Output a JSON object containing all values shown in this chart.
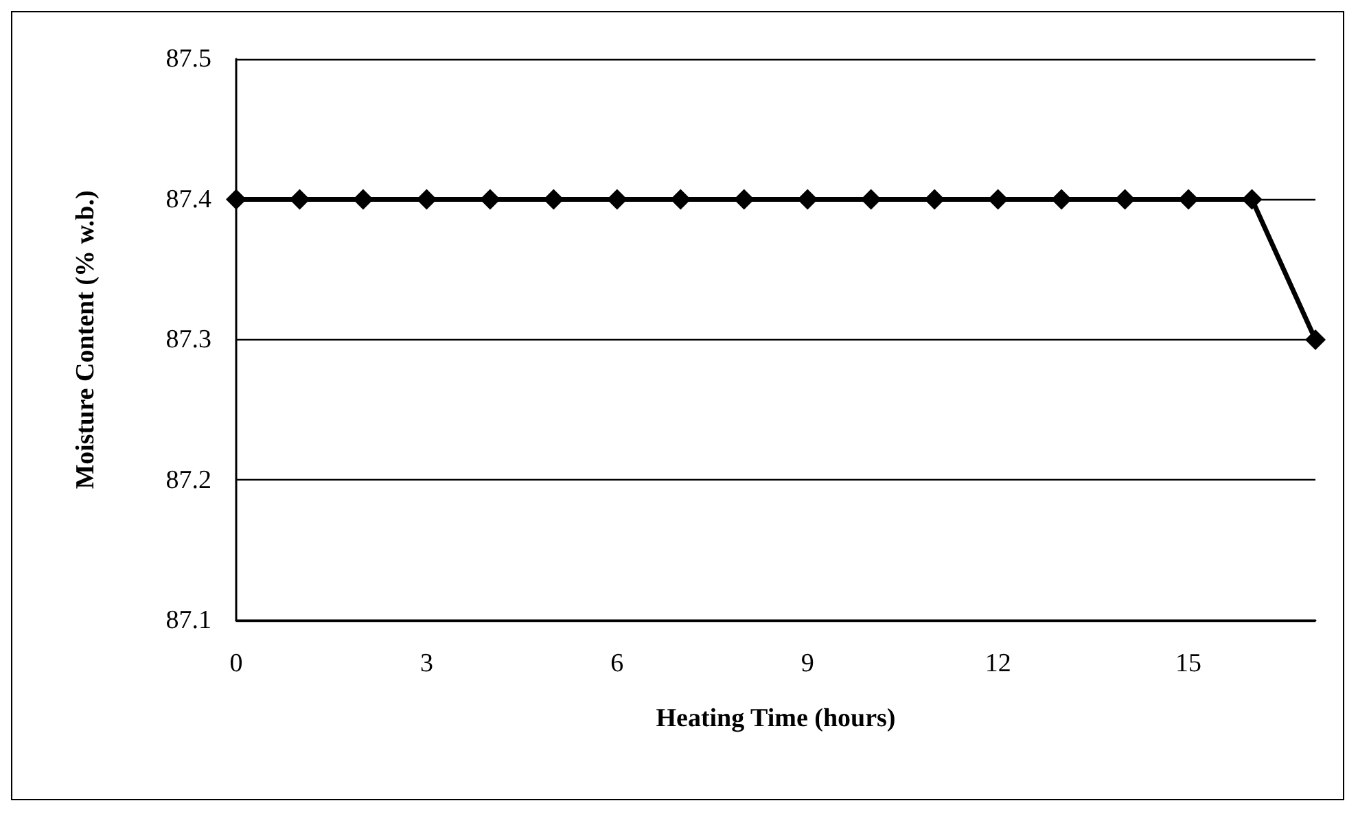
{
  "chart_data": {
    "type": "line",
    "xlabel": "Heating Time (hours)",
    "ylabel": "Moisture Content (% w.b.)",
    "x": [
      0,
      1,
      2,
      3,
      4,
      5,
      6,
      7,
      8,
      9,
      10,
      11,
      12,
      13,
      14,
      15,
      16,
      17
    ],
    "series": [
      {
        "color": "#000000",
        "values": [
          87.4,
          87.4,
          87.4,
          87.4,
          87.4,
          87.4,
          87.4,
          87.4,
          87.4,
          87.4,
          87.4,
          87.4,
          87.4,
          87.4,
          87.4,
          87.4,
          87.4,
          87.3
        ]
      }
    ],
    "xlim": [
      0,
      17
    ],
    "xticks": [
      0,
      3,
      6,
      9,
      12,
      15
    ],
    "ylim": [
      87.1,
      87.5
    ],
    "yticks": [
      87.1,
      87.2,
      87.3,
      87.4,
      87.5
    ],
    "grid": "y",
    "marker": "diamond",
    "line_style": "solid"
  }
}
